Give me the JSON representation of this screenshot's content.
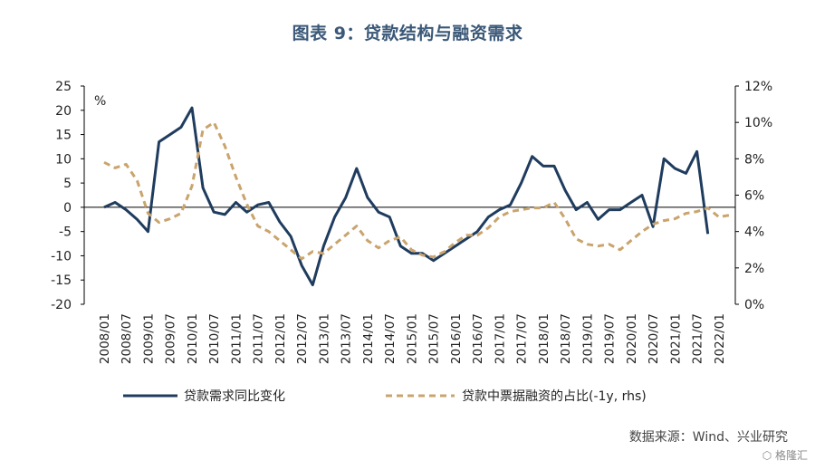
{
  "title": "图表 9：贷款结构与融资需求",
  "source": "数据来源：Wind、兴业研究",
  "watermark": "格隆汇",
  "colors": {
    "series1": "#1f3c5e",
    "series2": "#c9a46d",
    "axis": "#000000"
  },
  "chart_data": {
    "type": "line",
    "x": [
      "2008/01",
      "2008/04",
      "2008/07",
      "2008/10",
      "2009/01",
      "2009/04",
      "2009/07",
      "2009/10",
      "2010/01",
      "2010/04",
      "2010/07",
      "2010/10",
      "2011/01",
      "2011/04",
      "2011/07",
      "2011/10",
      "2012/01",
      "2012/04",
      "2012/07",
      "2012/10",
      "2013/01",
      "2013/04",
      "2013/07",
      "2013/10",
      "2014/01",
      "2014/04",
      "2014/07",
      "2014/10",
      "2015/01",
      "2015/04",
      "2015/07",
      "2015/10",
      "2016/01",
      "2016/04",
      "2016/07",
      "2016/10",
      "2017/01",
      "2017/04",
      "2017/07",
      "2017/10",
      "2018/01",
      "2018/04",
      "2018/07",
      "2018/10",
      "2019/01",
      "2019/04",
      "2019/07",
      "2019/10",
      "2020/01",
      "2020/04",
      "2020/07",
      "2020/10",
      "2021/01",
      "2021/04",
      "2021/07",
      "2021/10",
      "2022/01",
      "2022/04"
    ],
    "x_tick_labels": [
      "2008/01",
      "2008/07",
      "2009/01",
      "2009/07",
      "2010/01",
      "2010/07",
      "2011/01",
      "2011/07",
      "2012/01",
      "2012/07",
      "2013/01",
      "2013/07",
      "2014/01",
      "2014/07",
      "2015/01",
      "2015/07",
      "2016/01",
      "2016/07",
      "2017/01",
      "2017/07",
      "2018/01",
      "2018/07",
      "2019/01",
      "2019/07",
      "2020/01",
      "2020/07",
      "2021/01",
      "2021/07",
      "2022/01"
    ],
    "y_left": {
      "label": "%",
      "range": [
        -20,
        25
      ],
      "ticks": [
        -20,
        -15,
        -10,
        -5,
        0,
        5,
        10,
        15,
        20,
        25
      ]
    },
    "y_right": {
      "range": [
        0,
        12
      ],
      "ticks": [
        "0%",
        "2%",
        "4%",
        "6%",
        "8%",
        "10%",
        "12%"
      ],
      "tick_values": [
        0,
        2,
        4,
        6,
        8,
        10,
        12
      ]
    },
    "series": [
      {
        "name": "贷款需求同比变化",
        "axis": "left",
        "style": "solid",
        "values": [
          0,
          1,
          -0.5,
          -2.5,
          -5,
          13.5,
          15,
          16.5,
          20.5,
          4,
          -1,
          -1.5,
          1,
          -1,
          0.5,
          1,
          -3,
          -6,
          -12,
          -16,
          -8,
          -2,
          2,
          8,
          2,
          -1,
          -2,
          -8,
          -9.5,
          -9.5,
          -11,
          -9.5,
          -8,
          -6.5,
          -5,
          -2,
          -0.5,
          0.5,
          5,
          10.5,
          8.5,
          8.5,
          3.5,
          -0.5,
          1,
          -2.5,
          -0.5,
          -0.5,
          1,
          2.5,
          -4,
          10,
          8,
          7,
          11.5,
          -5.5,
          null,
          null
        ]
      },
      {
        "name": "贷款中票据融资的占比(-1y, rhs)",
        "axis": "right",
        "style": "dashed",
        "values": [
          7.8,
          7.5,
          7.7,
          6.8,
          5.0,
          4.5,
          4.7,
          5.0,
          6.5,
          9.6,
          10.0,
          8.7,
          7.0,
          5.5,
          4.3,
          4.0,
          3.5,
          3.0,
          2.5,
          2.9,
          2.8,
          3.3,
          3.8,
          4.3,
          3.5,
          3.1,
          3.5,
          3.7,
          3.0,
          2.7,
          2.6,
          2.9,
          3.4,
          3.8,
          3.8,
          4.2,
          4.8,
          5.1,
          5.2,
          5.3,
          5.3,
          5.6,
          4.7,
          3.6,
          3.3,
          3.2,
          3.3,
          3.0,
          3.5,
          4.0,
          4.4,
          4.6,
          4.7,
          5.0,
          5.1,
          5.3,
          4.8,
          4.9
        ]
      }
    ],
    "legend": [
      {
        "label": "贷款需求同比变化",
        "style": "solid"
      },
      {
        "label": "贷款中票据融资的占比(-1y, rhs)",
        "style": "dashed"
      }
    ],
    "legend_position": "bottom"
  }
}
